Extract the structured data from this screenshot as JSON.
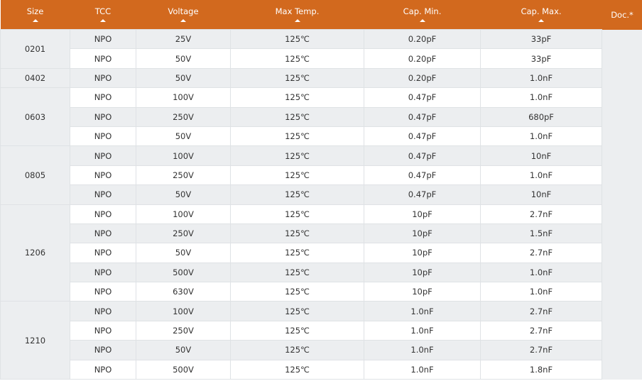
{
  "header": {
    "columns": [
      "Size",
      "TCC",
      "Voltage",
      "Max Temp.",
      "Cap. Min.",
      "Cap. Max.",
      "Doc.*"
    ],
    "sortable": [
      true,
      true,
      true,
      true,
      true,
      true,
      false
    ],
    "color": "#d2691e"
  },
  "groups": [
    {
      "size": "0201",
      "rows": [
        [
          "NPO",
          "25V",
          "125℃",
          "0.20pF",
          "33pF"
        ],
        [
          "NPO",
          "50V",
          "125℃",
          "0.20pF",
          "33pF"
        ]
      ]
    },
    {
      "size": "0402",
      "rows": [
        [
          "NPO",
          "50V",
          "125℃",
          "0.20pF",
          "1.0nF"
        ]
      ]
    },
    {
      "size": "0603",
      "rows": [
        [
          "NPO",
          "100V",
          "125℃",
          "0.47pF",
          "1.0nF"
        ],
        [
          "NPO",
          "250V",
          "125℃",
          "0.47pF",
          "680pF"
        ],
        [
          "NPO",
          "50V",
          "125℃",
          "0.47pF",
          "1.0nF"
        ]
      ]
    },
    {
      "size": "0805",
      "rows": [
        [
          "NPO",
          "100V",
          "125℃",
          "0.47pF",
          "10nF"
        ],
        [
          "NPO",
          "250V",
          "125℃",
          "0.47pF",
          "1.0nF"
        ],
        [
          "NPO",
          "50V",
          "125℃",
          "0.47pF",
          "10nF"
        ]
      ]
    },
    {
      "size": "1206",
      "rows": [
        [
          "NPO",
          "100V",
          "125℃",
          "10pF",
          "2.7nF"
        ],
        [
          "NPO",
          "250V",
          "125℃",
          "10pF",
          "1.5nF"
        ],
        [
          "NPO",
          "50V",
          "125℃",
          "10pF",
          "2.7nF"
        ],
        [
          "NPO",
          "500V",
          "125℃",
          "10pF",
          "1.0nF"
        ],
        [
          "NPO",
          "630V",
          "125℃",
          "10pF",
          "1.0nF"
        ]
      ]
    },
    {
      "size": "1210",
      "rows": [
        [
          "NPO",
          "100V",
          "125℃",
          "1.0nF",
          "2.7nF"
        ],
        [
          "NPO",
          "250V",
          "125℃",
          "1.0nF",
          "2.7nF"
        ],
        [
          "NPO",
          "50V",
          "125℃",
          "1.0nF",
          "2.7nF"
        ],
        [
          "NPO",
          "500V",
          "125℃",
          "1.0nF",
          "1.8nF"
        ]
      ]
    }
  ]
}
